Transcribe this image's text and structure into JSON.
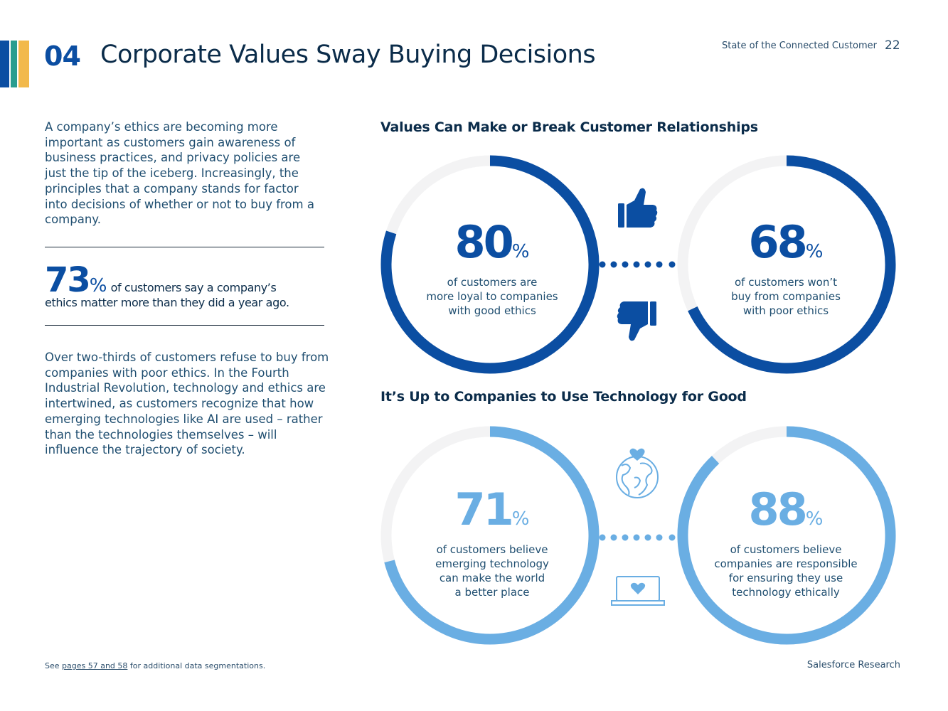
{
  "header": {
    "section_number": "04",
    "title": "Corporate Values Sway Buying Decisions",
    "running_head": "State of the Connected Customer",
    "page_number": "22",
    "stripe_colors": [
      "#0b4ea2",
      "#2a9d8f",
      "#f2b94b"
    ]
  },
  "intro": {
    "lead": "A company’s ethics are becoming more important as customers gain awareness of business practices, and privacy policies are just the tip of the iceberg. Increasingly, the principles that a company stands for factor into decisions of whether or not to buy from a company.",
    "stat_number": "73",
    "stat_percent": "%",
    "stat_text_1": "of customers say a company’s",
    "stat_text_2": "ethics matter more than they did a year ago.",
    "body": "Over two-thirds of customers refuse to buy from companies with poor ethics. In the Fourth Industrial Revolution, technology and ethics are intertwined, as customers recognize that how emerging technologies like AI are used – rather than the technologies themselves – will influence the trajectory of society."
  },
  "colors": {
    "dark_blue": "#0b4ea2",
    "light_blue": "#6aaee3",
    "track": "#f3f3f4"
  },
  "chart_data": [
    {
      "type": "pie",
      "title": "Values Can Make or Break Customer Relationships",
      "rings": [
        {
          "value": 80,
          "label": "80",
          "desc": "of customers are more loyal to companies with good ethics",
          "desc_lines": [
            "of customers are",
            "more loyal to companies",
            "with good ethics"
          ]
        },
        {
          "value": 68,
          "label": "68",
          "desc": "of customers won’t buy from companies with poor ethics",
          "desc_lines": [
            "of customers won’t",
            "buy from companies",
            "with poor ethics"
          ]
        }
      ],
      "icons": [
        "thumbs-up-icon",
        "thumbs-down-icon"
      ]
    },
    {
      "type": "pie",
      "title": "It’s Up to Companies to Use Technology for Good",
      "rings": [
        {
          "value": 71,
          "label": "71",
          "desc": "of customers believe emerging technology can make the world a better place",
          "desc_lines": [
            "of customers believe",
            "emerging technology",
            "can make the world",
            "a better place"
          ]
        },
        {
          "value": 88,
          "label": "88",
          "desc": "of customers believe companies are responsible for ensuring they use technology ethically",
          "desc_lines": [
            "of customers believe",
            "companies are responsible",
            "for ensuring they use",
            "technology ethically"
          ]
        }
      ],
      "icons": [
        "globe-heart-icon",
        "laptop-heart-icon"
      ]
    }
  ],
  "footer": {
    "footnote_prefix": "See ",
    "footnote_link": "pages 57 and 58",
    "footnote_suffix": " for additional data segmentations.",
    "brand": "Salesforce Research"
  }
}
